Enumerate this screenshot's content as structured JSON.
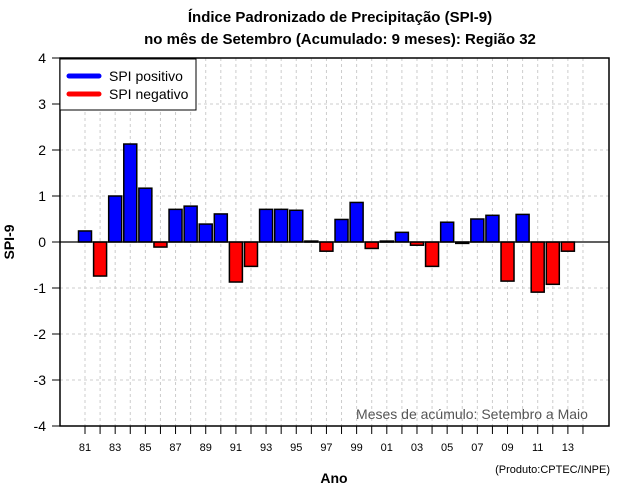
{
  "chart_data": {
    "type": "bar",
    "title": "Índice Padronizado de Precipitação (SPI-9)",
    "subtitle": "no mês de Setembro (Acumulado: 9 meses): Região 32",
    "xlabel": "Ano",
    "ylabel": "SPI-9",
    "ylim": [
      -4,
      4
    ],
    "yticks": [
      "-4",
      "-3",
      "-2",
      "-1",
      "0",
      "1",
      "2",
      "3",
      "4"
    ],
    "ytick_values": [
      -4,
      -3,
      -2,
      -1,
      0,
      1,
      2,
      3,
      4
    ],
    "xticks": [
      "81",
      "83",
      "85",
      "87",
      "89",
      "91",
      "93",
      "95",
      "97",
      "99",
      "01",
      "03",
      "05",
      "07",
      "09",
      "11",
      "13"
    ],
    "grid": true,
    "legend_position": "top-left",
    "legend": [
      {
        "label": "SPI positivo",
        "color": "#0000ff"
      },
      {
        "label": "SPI negativo",
        "color": "#ff0000"
      }
    ],
    "categories": [
      1981,
      1982,
      1983,
      1984,
      1985,
      1986,
      1987,
      1988,
      1989,
      1990,
      1991,
      1992,
      1993,
      1994,
      1995,
      1996,
      1997,
      1998,
      1999,
      2000,
      2001,
      2002,
      2003,
      2004,
      2005,
      2006,
      2007,
      2008,
      2009,
      2010,
      2011,
      2012,
      2013,
      2014
    ],
    "values": [
      0.24,
      -0.74,
      1.0,
      2.13,
      1.17,
      -0.11,
      0.71,
      0.78,
      0.39,
      0.61,
      -0.87,
      -0.53,
      0.71,
      0.71,
      0.69,
      0.02,
      -0.2,
      0.49,
      0.86,
      -0.14,
      0.02,
      0.21,
      -0.07,
      -0.53,
      0.43,
      -0.03,
      0.5,
      0.58,
      -0.85,
      0.6,
      -1.09,
      -0.92,
      -0.2,
      null
    ],
    "annotation": "Meses de acúmulo: Setembro a Maio",
    "credit": "(Produto:CPTEC/INPE)",
    "colors": {
      "positive": "#0000ff",
      "negative": "#ff0000",
      "grid": "#cccccc"
    }
  }
}
